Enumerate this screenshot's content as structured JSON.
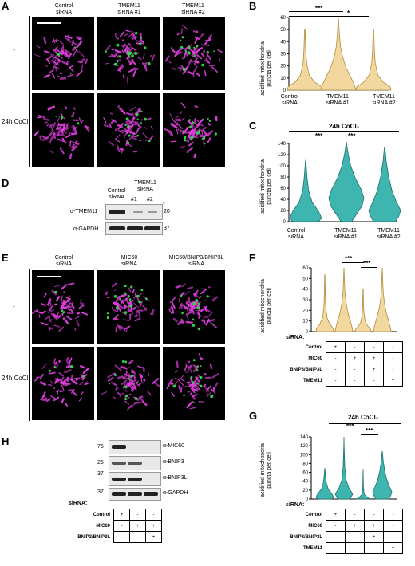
{
  "panels": {
    "A": {
      "label": "A",
      "columns": [
        {
          "line1": "Control",
          "line2": "siRNA"
        },
        {
          "line1": "TMEM11",
          "line2": "siRNA #1"
        },
        {
          "line1": "TMEM11",
          "line2": "siRNA #2"
        }
      ],
      "rows": [
        "-",
        "24h CoCl₂"
      ]
    },
    "B": {
      "label": "B",
      "ylabel_1": "acidified mitochondria",
      "ylabel_2": "puncta per cell",
      "yticks": [
        "0",
        "10",
        "20",
        "30",
        "40",
        "50",
        "60"
      ],
      "groups": [
        {
          "line1": "Control",
          "line2": "siRNA"
        },
        {
          "line1": "TMEM11",
          "line2": "siRNA #1"
        },
        {
          "line1": "TMEM11",
          "line2": "siRNA #2"
        }
      ],
      "sig": [
        "***",
        "*"
      ]
    },
    "C": {
      "label": "C",
      "title": "24h CoCl₂",
      "ylabel_1": "acidified mitochondria",
      "ylabel_2": "puncta per cell",
      "yticks": [
        "0",
        "20",
        "40",
        "60",
        "80",
        "100",
        "120",
        "140"
      ],
      "groups": [
        {
          "line1": "Control",
          "line2": "siRNA"
        },
        {
          "line1": "TMEM11",
          "line2": "siRNA #1"
        },
        {
          "line1": "TMEM11",
          "line2": "siRNA #2"
        }
      ],
      "sig": [
        "***",
        "***"
      ]
    },
    "D": {
      "label": "D",
      "header": "TMEM11",
      "header2": "siRNA",
      "lane1": "Control",
      "lane1b": "siRNA",
      "lane2": "#1",
      "lane3": "#2",
      "row1": "α-TMEM11",
      "row2": "α-GAPDH",
      "mw1": "20",
      "mw2": "37",
      "star": "*"
    },
    "E": {
      "label": "E",
      "columns": [
        {
          "line1": "Control",
          "line2": "siRNA"
        },
        {
          "line1": "MIC60",
          "line2": "siRNA"
        },
        {
          "line1": "MIC60/BNIP3/BNIP3L",
          "line2": "siRNA"
        }
      ],
      "rows": [
        "-",
        "24h CoCl₂"
      ]
    },
    "F": {
      "label": "F",
      "ylabel_1": "acidified mitochondria",
      "ylabel_2": "puncta per cell",
      "yticks": [
        "0",
        "10",
        "20",
        "30",
        "40",
        "50",
        "60"
      ],
      "sig": [
        "***",
        "***"
      ],
      "sirna_label": "siRNA:",
      "table": [
        {
          "name": "Control",
          "vals": [
            "+",
            "-",
            "-",
            "-"
          ]
        },
        {
          "name": "MIC60",
          "vals": [
            "-",
            "+",
            "+",
            "-"
          ]
        },
        {
          "name": "BNIP3/BNIP3L",
          "vals": [
            "-",
            "-",
            "+",
            "-"
          ]
        },
        {
          "name": "TMEM11",
          "vals": [
            "-",
            "-",
            "-",
            "+"
          ]
        }
      ]
    },
    "G": {
      "label": "G",
      "title": "24h CoCl₂",
      "ylabel_1": "acidified mitochondria",
      "ylabel_2": "puncta per cell",
      "yticks": [
        "0",
        "20",
        "40",
        "60",
        "80",
        "100",
        "120",
        "140"
      ],
      "sig": [
        "***",
        "***"
      ],
      "sirna_label": "siRNA:",
      "table": [
        {
          "name": "Control",
          "vals": [
            "+",
            "-",
            "-",
            "-"
          ]
        },
        {
          "name": "MIC60",
          "vals": [
            "-",
            "+",
            "+",
            "-"
          ]
        },
        {
          "name": "BNIP3/BNIP3L",
          "vals": [
            "-",
            "-",
            "+",
            "-"
          ]
        },
        {
          "name": "TMEM11",
          "vals": [
            "-",
            "-",
            "-",
            "+"
          ]
        }
      ]
    },
    "H": {
      "label": "H",
      "blots": [
        {
          "name": "α-MIC60",
          "mw": "75"
        },
        {
          "name": "α-BNIP3",
          "mw": "25"
        },
        {
          "name": "α-BNIP3L",
          "mw": "37"
        },
        {
          "name": "α-GAPDH",
          "mw": "37"
        }
      ],
      "sirna_label": "siRNA:",
      "table": [
        {
          "name": "Control",
          "vals": [
            "+",
            "-",
            "-"
          ]
        },
        {
          "name": "MIC60",
          "vals": [
            "-",
            "+",
            "+"
          ]
        },
        {
          "name": "BNIP3/BNIP3L",
          "vals": [
            "-",
            "-",
            "+"
          ]
        }
      ]
    }
  },
  "colors": {
    "tan": "#f2d79e",
    "tan_stroke": "#b08d3c",
    "teal": "#3fb5b0",
    "teal_stroke": "#1f6f6c",
    "magenta": "#e23fe0",
    "green": "#38d24a"
  }
}
